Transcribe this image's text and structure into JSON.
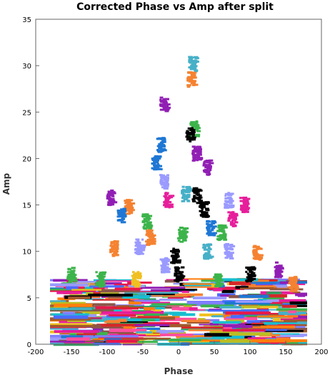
{
  "chart_data": {
    "type": "scatter",
    "title": "Corrected Phase vs Amp after split",
    "xlabel": "Phase",
    "ylabel": "Amp",
    "xlim": [
      -200,
      200
    ],
    "ylim": [
      0,
      35
    ],
    "x_ticks": [
      -200,
      -150,
      -100,
      -50,
      0,
      50,
      100,
      150,
      200
    ],
    "y_ticks": [
      0,
      5,
      10,
      15,
      20,
      25,
      30,
      35
    ],
    "grid": false,
    "legend": "none",
    "colors": [
      "#e6194b",
      "#1e77d4",
      "#3cb44b",
      "#f58231",
      "#911eb4",
      "#46b0c8",
      "#000000",
      "#e61e9b",
      "#a05a2c",
      "#f0c020",
      "#9a9aff",
      "#2ca05a",
      "#ff7f0e",
      "#7f7fff",
      "#d62728",
      "#17becf",
      "#8c564b",
      "#bcbd22",
      "#ff4fa0",
      "#4b6bff"
    ],
    "clusters": [
      {
        "x": 20,
        "y": 30.2,
        "color": "#46b0c8"
      },
      {
        "x": 18,
        "y": 28.5,
        "color": "#f58231"
      },
      {
        "x": -20,
        "y": 25.8,
        "color": "#911eb4"
      },
      {
        "x": 22,
        "y": 23.2,
        "color": "#3cb44b"
      },
      {
        "x": 16,
        "y": 22.6,
        "color": "#000000"
      },
      {
        "x": -25,
        "y": 21.5,
        "color": "#1e77d4"
      },
      {
        "x": -32,
        "y": 19.5,
        "color": "#1e77d4"
      },
      {
        "x": 25,
        "y": 20.5,
        "color": "#911eb4"
      },
      {
        "x": 40,
        "y": 19.0,
        "color": "#911eb4"
      },
      {
        "x": -20,
        "y": 17.5,
        "color": "#9a9aff"
      },
      {
        "x": -15,
        "y": 15.5,
        "color": "#e61e9b"
      },
      {
        "x": 10,
        "y": 16.2,
        "color": "#46b0c8"
      },
      {
        "x": 25,
        "y": 16.0,
        "color": "#000000"
      },
      {
        "x": 35,
        "y": 14.5,
        "color": "#000000"
      },
      {
        "x": -95,
        "y": 15.8,
        "color": "#911eb4"
      },
      {
        "x": -70,
        "y": 14.8,
        "color": "#f58231"
      },
      {
        "x": -80,
        "y": 13.8,
        "color": "#1e77d4"
      },
      {
        "x": 70,
        "y": 15.5,
        "color": "#9a9aff"
      },
      {
        "x": 92,
        "y": 15.0,
        "color": "#e61e9b"
      },
      {
        "x": 75,
        "y": 13.5,
        "color": "#e61e9b"
      },
      {
        "x": -45,
        "y": 13.2,
        "color": "#3cb44b"
      },
      {
        "x": 45,
        "y": 12.5,
        "color": "#1e77d4"
      },
      {
        "x": 60,
        "y": 12.0,
        "color": "#3cb44b"
      },
      {
        "x": -40,
        "y": 11.5,
        "color": "#f58231"
      },
      {
        "x": -55,
        "y": 10.5,
        "color": "#9a9aff"
      },
      {
        "x": -90,
        "y": 10.3,
        "color": "#f58231"
      },
      {
        "x": 5,
        "y": 11.8,
        "color": "#3cb44b"
      },
      {
        "x": -5,
        "y": 9.5,
        "color": "#000000"
      },
      {
        "x": 40,
        "y": 10.0,
        "color": "#46b0c8"
      },
      {
        "x": 70,
        "y": 10.0,
        "color": "#9a9aff"
      },
      {
        "x": 110,
        "y": 9.8,
        "color": "#f58231"
      },
      {
        "x": -20,
        "y": 8.5,
        "color": "#9a9aff"
      },
      {
        "x": 0,
        "y": 7.5,
        "color": "#000000"
      },
      {
        "x": -150,
        "y": 7.5,
        "color": "#3cb44b"
      },
      {
        "x": -110,
        "y": 7.0,
        "color": "#3cb44b"
      },
      {
        "x": 140,
        "y": 8.0,
        "color": "#911eb4"
      },
      {
        "x": 160,
        "y": 6.5,
        "color": "#f58231"
      },
      {
        "x": 100,
        "y": 7.5,
        "color": "#000000"
      },
      {
        "x": -60,
        "y": 7.0,
        "color": "#f0c020"
      },
      {
        "x": 55,
        "y": 7.0,
        "color": "#3cb44b"
      }
    ],
    "band": {
      "x": [
        -180,
        180
      ],
      "y": [
        0,
        7
      ]
    }
  }
}
